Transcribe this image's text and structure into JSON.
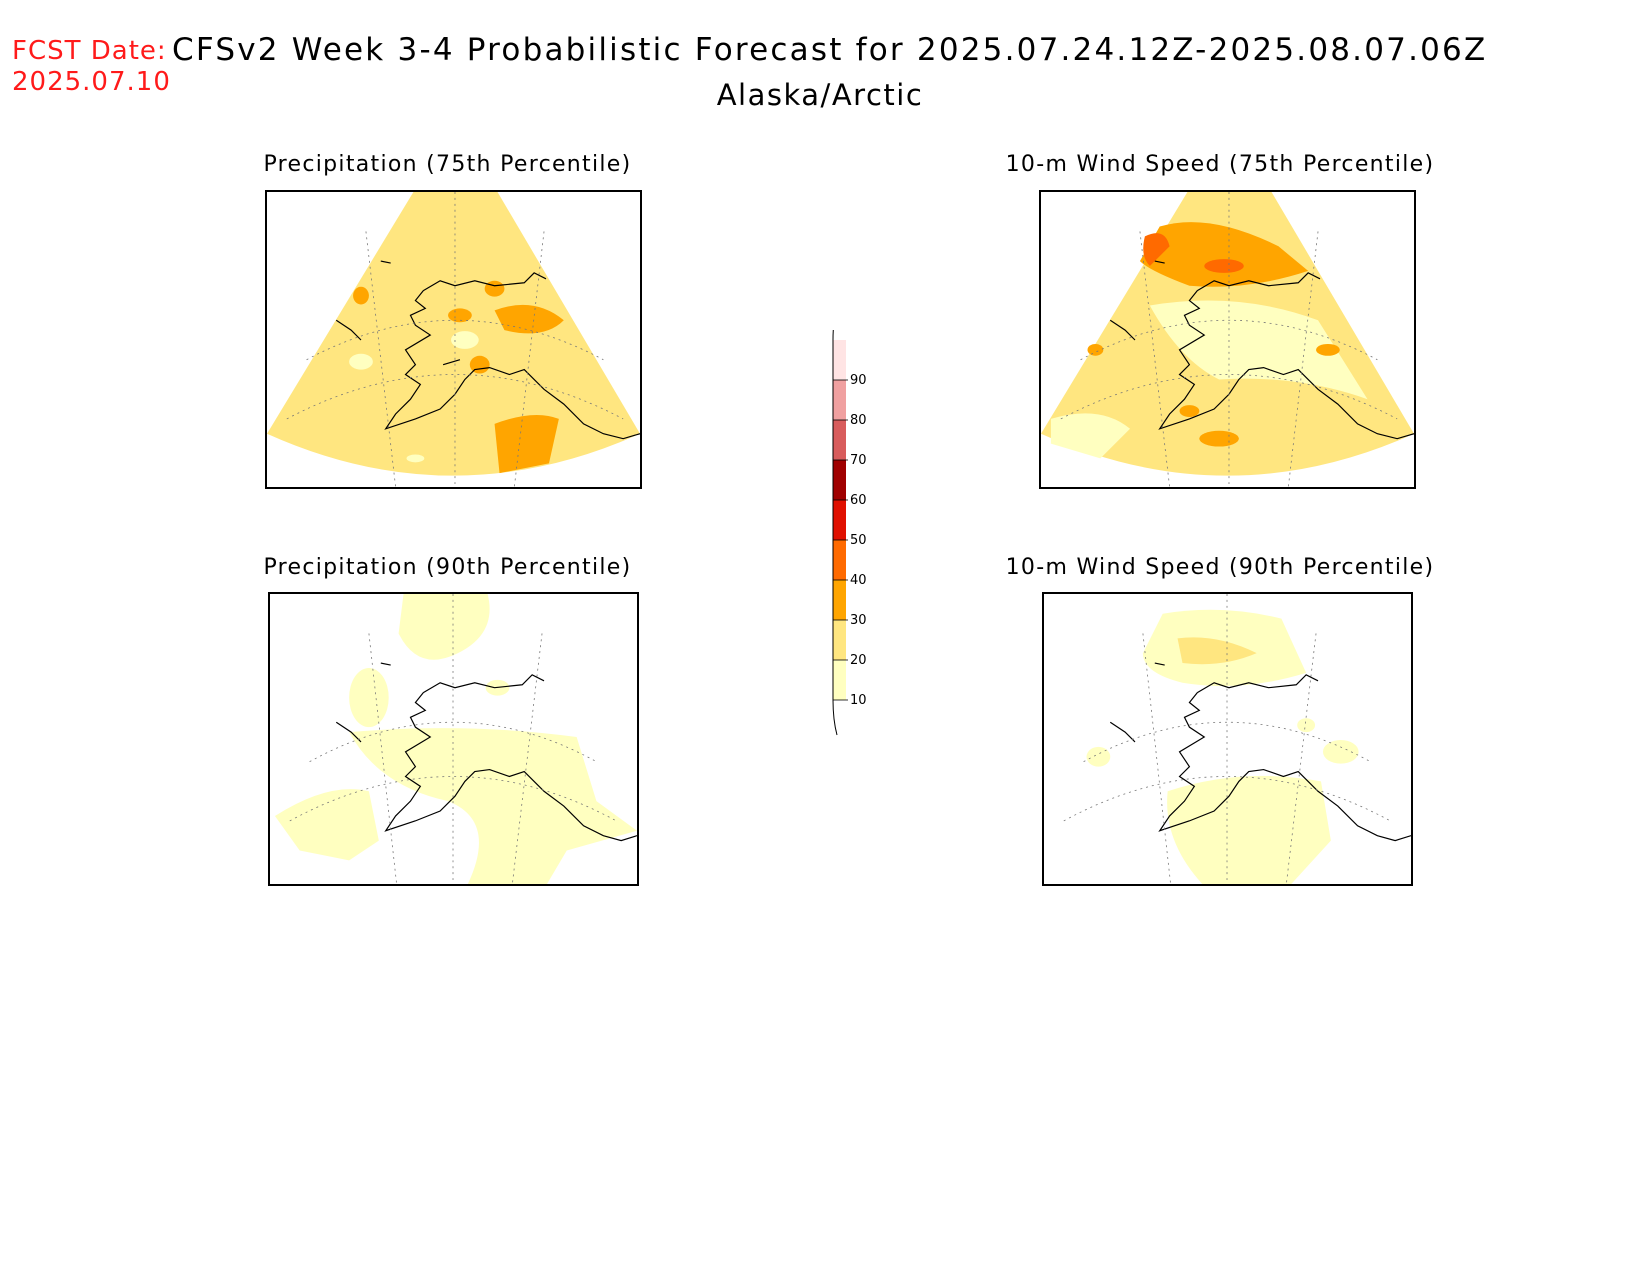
{
  "header": {
    "fcst_label": "FCST Date:",
    "fcst_date": "2025.07.10",
    "title": "CFSv2 Week 3-4 Probabilistic Forecast for 2025.07.24.12Z-2025.08.07.06Z",
    "region": "Alaska/Arctic"
  },
  "panels": [
    {
      "title": "Precipitation (75th Percentile)",
      "dominant_category": "20-30"
    },
    {
      "title": "10-m Wind Speed (75th Percentile)",
      "dominant_category": "20-30"
    },
    {
      "title": "Precipitation (90th Percentile)",
      "dominant_category": "10-20"
    },
    {
      "title": "10-m Wind Speed (90th Percentile)",
      "dominant_category": "below 10"
    }
  ],
  "colorbar": {
    "levels": [
      "10",
      "20",
      "30",
      "40",
      "50",
      "60",
      "70",
      "80",
      "90"
    ],
    "colors": [
      "#ffffc0",
      "#ffe680",
      "#ffa500",
      "#ff6a00",
      "#e01000",
      "#a00000",
      "#d85c5c",
      "#f0a0a0",
      "#ffe4e4"
    ]
  }
}
